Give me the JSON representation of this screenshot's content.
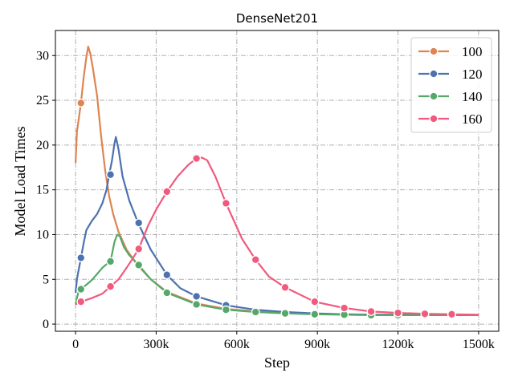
{
  "chart_data": {
    "type": "line",
    "title": "DenseNet201",
    "xlabel": "Step",
    "ylabel": "Model Load Times",
    "xlim": [
      -75000,
      1575000
    ],
    "ylim": [
      -0.8,
      32.8
    ],
    "xticks": [
      0,
      300000,
      600000,
      900000,
      1200000,
      1500000
    ],
    "xtick_labels": [
      "0",
      "300k",
      "600k",
      "900k",
      "1200k",
      "1500k"
    ],
    "yticks": [
      0,
      5,
      10,
      15,
      20,
      25,
      30
    ],
    "ytick_labels": [
      "0",
      "5",
      "10",
      "15",
      "20",
      "25",
      "30"
    ],
    "grid": true,
    "legend_position": "top-right",
    "series": [
      {
        "name": "100",
        "color": "#dd8452",
        "x": [
          0,
          5000,
          10000,
          20000,
          30000,
          40000,
          47000,
          55000,
          65000,
          80000,
          95000,
          110000,
          125000,
          140000,
          160000,
          190000,
          230000,
          280000,
          340000,
          450000,
          560000,
          670000,
          780000,
          890000,
          1000000,
          1100000,
          1200000,
          1300000,
          1400000,
          1500000
        ],
        "y": [
          18.0,
          21.5,
          22.5,
          24.7,
          27.5,
          29.8,
          31.0,
          30.2,
          28.5,
          25.5,
          21.0,
          17.2,
          14.3,
          12.3,
          10.3,
          8.3,
          6.6,
          5.0,
          3.6,
          2.3,
          1.7,
          1.4,
          1.2,
          1.15,
          1.1,
          1.05,
          1.05,
          1.0,
          1.0,
          1.0
        ],
        "markers_x": [
          20000
        ],
        "markers_y": [
          24.7
        ]
      },
      {
        "name": "120",
        "color": "#4c72b0",
        "x": [
          0,
          5000,
          10000,
          20000,
          30000,
          40000,
          60000,
          80000,
          100000,
          115000,
          125000,
          135000,
          145000,
          150000,
          160000,
          175000,
          200000,
          233000,
          280000,
          340000,
          390000,
          450000,
          560000,
          670000,
          780000,
          890000,
          1000000,
          1100000,
          1200000,
          1300000,
          1400000,
          1500000
        ],
        "y": [
          3.5,
          5.0,
          5.8,
          7.4,
          9.0,
          10.5,
          11.5,
          12.3,
          13.5,
          15.0,
          16.7,
          18.2,
          20.2,
          20.9,
          19.5,
          16.5,
          13.8,
          11.3,
          8.3,
          5.5,
          4.0,
          3.1,
          2.1,
          1.6,
          1.35,
          1.2,
          1.1,
          1.05,
          1.05,
          1.0,
          1.0,
          1.0
        ],
        "markers_x": [
          20000,
          130000,
          235000,
          340000,
          450000,
          560000
        ],
        "markers_y": [
          7.4,
          16.7,
          11.3,
          5.5,
          3.1,
          2.1
        ]
      },
      {
        "name": "140",
        "color": "#55a868",
        "x": [
          0,
          10000,
          20000,
          40000,
          60000,
          80000,
          100000,
          120000,
          130000,
          145000,
          155000,
          165000,
          180000,
          200000,
          235000,
          280000,
          340000,
          450000,
          560000,
          670000,
          780000,
          890000,
          1000000,
          1100000,
          1200000,
          1300000,
          1400000,
          1500000
        ],
        "y": [
          2.2,
          3.5,
          3.9,
          4.4,
          4.9,
          5.6,
          6.3,
          6.8,
          7.0,
          9.2,
          10.0,
          9.8,
          8.6,
          7.7,
          6.6,
          5.0,
          3.5,
          2.2,
          1.6,
          1.35,
          1.2,
          1.1,
          1.05,
          1.0,
          1.0,
          1.0,
          1.0,
          1.0
        ],
        "markers_x": [
          20000,
          130000,
          235000,
          340000,
          450000,
          560000,
          670000,
          780000,
          890000,
          1000000,
          1100000,
          1200000,
          1300000,
          1400000
        ],
        "markers_y": [
          3.9,
          7.0,
          6.6,
          3.5,
          2.2,
          1.6,
          1.35,
          1.2,
          1.1,
          1.05,
          1.0,
          1.0,
          1.0,
          1.0
        ]
      },
      {
        "name": "160",
        "color": "#f05a7e",
        "x": [
          0,
          20000,
          60000,
          100000,
          130000,
          160000,
          190000,
          210000,
          235000,
          270000,
          300000,
          340000,
          380000,
          420000,
          450000,
          470000,
          490000,
          520000,
          560000,
          620000,
          670000,
          720000,
          780000,
          890000,
          1000000,
          1100000,
          1200000,
          1300000,
          1400000,
          1500000
        ],
        "y": [
          2.2,
          2.5,
          2.9,
          3.4,
          4.2,
          5.0,
          6.3,
          7.2,
          8.4,
          11.0,
          12.8,
          14.8,
          16.5,
          17.8,
          18.5,
          18.6,
          18.3,
          16.5,
          13.5,
          9.5,
          7.2,
          5.3,
          4.1,
          2.5,
          1.8,
          1.4,
          1.25,
          1.15,
          1.1,
          1.05
        ],
        "markers_x": [
          20000,
          130000,
          235000,
          340000,
          450000,
          560000,
          670000,
          780000,
          890000,
          1000000,
          1100000,
          1200000,
          1300000,
          1400000
        ],
        "markers_y": [
          2.5,
          4.2,
          8.4,
          14.8,
          18.5,
          13.5,
          7.2,
          4.1,
          2.5,
          1.8,
          1.4,
          1.25,
          1.15,
          1.1
        ]
      }
    ]
  }
}
